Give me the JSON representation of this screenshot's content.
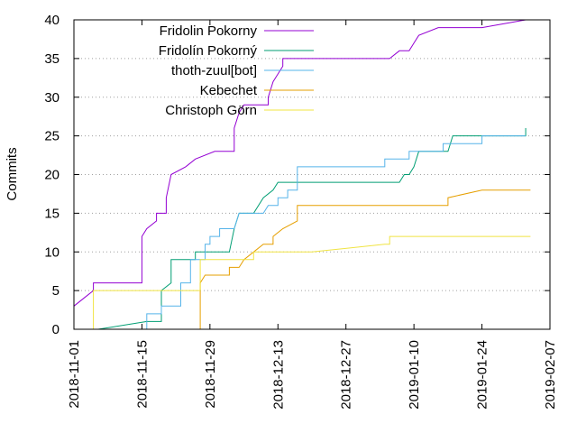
{
  "chart_data": {
    "type": "line",
    "title": "",
    "xlabel": "",
    "ylabel": "Commits",
    "ylim": [
      0,
      40
    ],
    "yticks": [
      0,
      5,
      10,
      15,
      20,
      25,
      30,
      35,
      40
    ],
    "xlim": [
      "2018-11-01",
      "2019-02-07"
    ],
    "xticks": [
      "2018-11-01",
      "2018-11-15",
      "2018-11-29",
      "2018-12-13",
      "2018-12-27",
      "2019-01-10",
      "2019-01-24",
      "2019-02-07"
    ],
    "grid": "horizontal-dotted",
    "legend_position": "top-left",
    "series": [
      {
        "name": "Fridolin Pokorny",
        "color": "#9400d3",
        "points": [
          [
            "2018-11-01",
            1
          ],
          [
            "2018-11-01",
            3
          ],
          [
            "2018-11-03",
            4
          ],
          [
            "2018-11-05",
            5
          ],
          [
            "2018-11-05",
            6
          ],
          [
            "2018-11-15",
            6
          ],
          [
            "2018-11-15",
            12
          ],
          [
            "2018-11-16",
            13
          ],
          [
            "2018-11-18",
            14
          ],
          [
            "2018-11-18",
            15
          ],
          [
            "2018-11-20",
            15
          ],
          [
            "2018-11-20",
            17
          ],
          [
            "2018-11-21",
            20
          ],
          [
            "2018-11-24",
            21
          ],
          [
            "2018-11-26",
            22
          ],
          [
            "2018-11-30",
            23
          ],
          [
            "2018-12-04",
            23
          ],
          [
            "2018-12-04",
            26
          ],
          [
            "2018-12-05",
            28
          ],
          [
            "2018-12-06",
            29
          ],
          [
            "2018-12-11",
            29
          ],
          [
            "2018-12-11",
            30
          ],
          [
            "2018-12-12",
            32
          ],
          [
            "2018-12-13",
            33
          ],
          [
            "2018-12-14",
            34
          ],
          [
            "2018-12-14",
            35
          ],
          [
            "2019-01-05",
            35
          ],
          [
            "2019-01-07",
            36
          ],
          [
            "2019-01-09",
            36
          ],
          [
            "2019-01-10",
            37
          ],
          [
            "2019-01-11",
            38
          ],
          [
            "2019-01-15",
            39
          ],
          [
            "2019-01-24",
            39
          ],
          [
            "2019-02-02",
            40
          ]
        ]
      },
      {
        "name": "Fridolín Pokorný",
        "color": "#009e73",
        "points": [
          [
            "2018-11-06",
            0
          ],
          [
            "2018-11-16",
            1
          ],
          [
            "2018-11-19",
            1
          ],
          [
            "2018-11-19",
            5
          ],
          [
            "2018-11-21",
            6
          ],
          [
            "2018-11-21",
            9
          ],
          [
            "2018-11-26",
            9
          ],
          [
            "2018-11-26",
            10
          ],
          [
            "2018-12-03",
            10
          ],
          [
            "2018-12-04",
            13
          ],
          [
            "2018-12-05",
            15
          ],
          [
            "2018-12-08",
            15
          ],
          [
            "2018-12-10",
            17
          ],
          [
            "2018-12-12",
            18
          ],
          [
            "2018-12-13",
            19
          ],
          [
            "2019-01-07",
            19
          ],
          [
            "2019-01-08",
            20
          ],
          [
            "2019-01-09",
            20
          ],
          [
            "2019-01-10",
            21
          ],
          [
            "2019-01-11",
            23
          ],
          [
            "2019-01-17",
            23
          ],
          [
            "2019-01-18",
            25
          ],
          [
            "2019-02-02",
            25
          ],
          [
            "2019-02-02",
            26
          ]
        ]
      },
      {
        "name": "thoth-zuul[bot]",
        "color": "#56b4e9",
        "points": [
          [
            "2018-11-16",
            0
          ],
          [
            "2018-11-16",
            2
          ],
          [
            "2018-11-19",
            2
          ],
          [
            "2018-11-19",
            3
          ],
          [
            "2018-11-23",
            3
          ],
          [
            "2018-11-23",
            6
          ],
          [
            "2018-11-25",
            6
          ],
          [
            "2018-11-25",
            9
          ],
          [
            "2018-11-28",
            9
          ],
          [
            "2018-11-28",
            11
          ],
          [
            "2018-11-29",
            11
          ],
          [
            "2018-11-29",
            12
          ],
          [
            "2018-12-01",
            12
          ],
          [
            "2018-12-01",
            13
          ],
          [
            "2018-12-04",
            13
          ],
          [
            "2018-12-05",
            15
          ],
          [
            "2018-12-10",
            15
          ],
          [
            "2018-12-11",
            16
          ],
          [
            "2018-12-13",
            16
          ],
          [
            "2018-12-13",
            17
          ],
          [
            "2018-12-15",
            17
          ],
          [
            "2018-12-15",
            18
          ],
          [
            "2018-12-17",
            18
          ],
          [
            "2018-12-17",
            21
          ],
          [
            "2019-01-04",
            21
          ],
          [
            "2019-01-04",
            22
          ],
          [
            "2019-01-09",
            22
          ],
          [
            "2019-01-09",
            23
          ],
          [
            "2019-01-16",
            23
          ],
          [
            "2019-01-16",
            24
          ],
          [
            "2019-01-24",
            24
          ],
          [
            "2019-01-24",
            25
          ],
          [
            "2019-02-02",
            25
          ]
        ]
      },
      {
        "name": "Kebechet",
        "color": "#e69f00",
        "points": [
          [
            "2018-11-27",
            0
          ],
          [
            "2018-11-27",
            6
          ],
          [
            "2018-11-28",
            7
          ],
          [
            "2018-12-03",
            7
          ],
          [
            "2018-12-03",
            8
          ],
          [
            "2018-12-05",
            8
          ],
          [
            "2018-12-06",
            9
          ],
          [
            "2018-12-08",
            10
          ],
          [
            "2018-12-10",
            11
          ],
          [
            "2018-12-12",
            11
          ],
          [
            "2018-12-12",
            12
          ],
          [
            "2018-12-14",
            13
          ],
          [
            "2018-12-17",
            14
          ],
          [
            "2018-12-17",
            16
          ],
          [
            "2019-01-17",
            16
          ],
          [
            "2019-01-17",
            17
          ],
          [
            "2019-01-24",
            18
          ],
          [
            "2019-02-03",
            18
          ]
        ]
      },
      {
        "name": "Christoph Görn",
        "color": "#f0e442",
        "points": [
          [
            "2018-11-05",
            0
          ],
          [
            "2018-11-05",
            5
          ],
          [
            "2018-11-27",
            5
          ],
          [
            "2018-11-27",
            9
          ],
          [
            "2018-12-08",
            9
          ],
          [
            "2018-12-08",
            10
          ],
          [
            "2018-12-20",
            10
          ],
          [
            "2019-01-04",
            11
          ],
          [
            "2019-01-05",
            11
          ],
          [
            "2019-01-05",
            12
          ],
          [
            "2019-02-03",
            12
          ]
        ]
      }
    ]
  }
}
